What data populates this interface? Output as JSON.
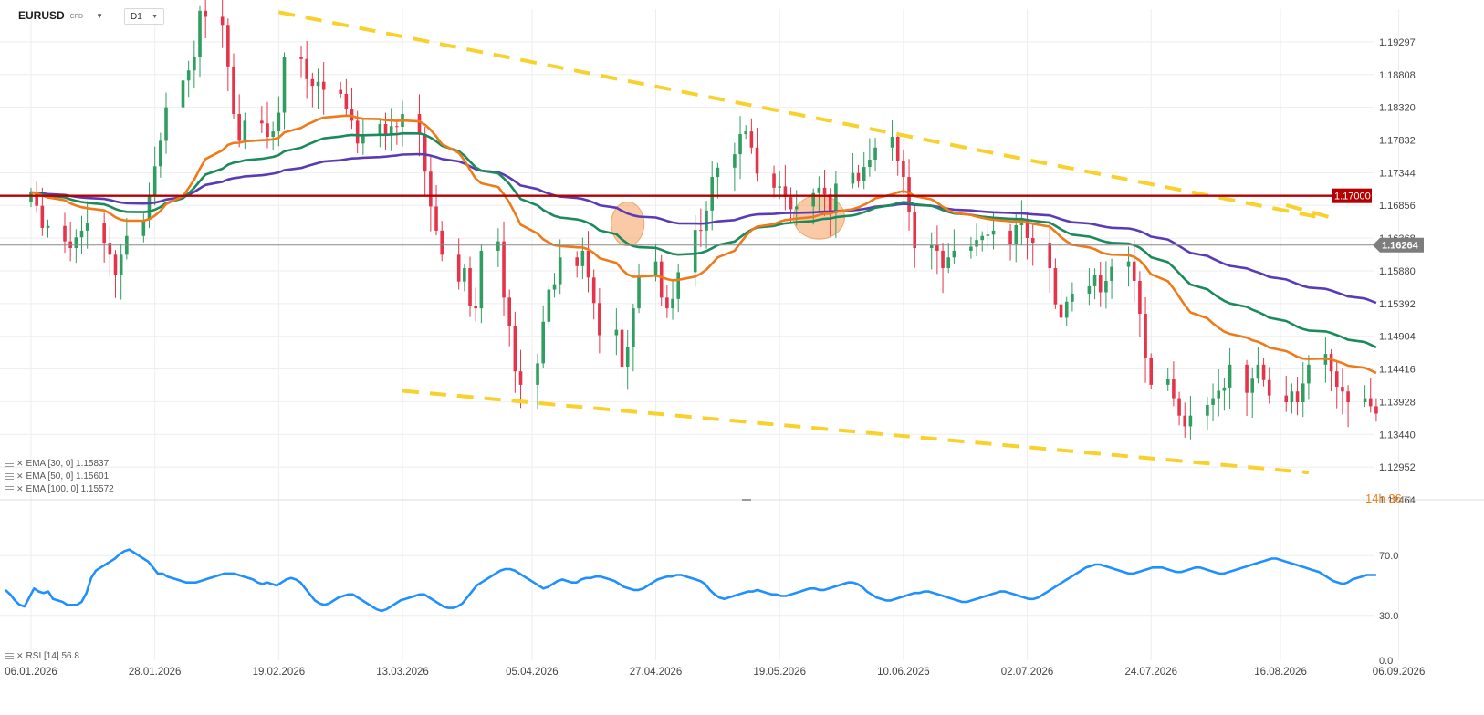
{
  "header": {
    "symbol": "EURUSD",
    "instrument_type": "CFD",
    "timeframe": "D1"
  },
  "countdown": {
    "hours": "14h",
    "minutes_value": "36",
    "minutes_unit": "m"
  },
  "legend": [
    {
      "label": "EMA [30, 0] 1.15837"
    },
    {
      "label": "EMA [50, 0] 1.15601"
    },
    {
      "label": "EMA [100, 0] 1.15572"
    }
  ],
  "rsi_legend": {
    "label": "RSI [14] 56.8"
  },
  "colors": {
    "bull": "#2f9e60",
    "bear": "#e5334a",
    "ema30": "#ee7a1a",
    "ema50": "#1c8a5c",
    "ema100": "#5b3bb5",
    "rsi": "#1e90ff",
    "trend": "#f8d12c",
    "resistance": "#b40000",
    "price": "#888888"
  },
  "chart_data": [
    {
      "type": "candlestick",
      "ylim": [
        1.12464,
        1.19785
      ],
      "y_ticks": [
        "1.19297",
        "1.18808",
        "1.18320",
        "1.17832",
        "1.17344",
        "1.16856",
        "1.16368",
        "1.15880",
        "1.15392",
        "1.14904",
        "1.14416",
        "1.13928",
        "1.13440",
        "1.12952",
        "1.12464"
      ],
      "x_ticks": [
        "06.01.2026",
        "28.01.2026",
        "19.02.2026",
        "13.03.2026",
        "05.04.2026",
        "27.04.2026",
        "19.05.2026",
        "10.06.2026",
        "02.07.2026",
        "24.07.2026",
        "16.08.2026",
        "06.09.2026"
      ],
      "x_start": "2026-01-06",
      "last_candle": "2026-09-02",
      "closes": [
        1.1705,
        1.1685,
        1.1652,
        1.1655,
        1.1632,
        1.1622,
        1.1638,
        1.1648,
        1.166,
        1.163,
        1.1612,
        1.1582,
        1.1612,
        1.164,
        1.1664,
        1.17,
        1.1744,
        1.1782,
        1.1832,
        1.1872,
        1.1887,
        1.1907,
        1.1976,
        1.1967,
        1.1955,
        1.1893,
        1.1822,
        1.1782,
        1.1812,
        1.1808,
        1.1788,
        1.1796,
        1.1824,
        1.1907,
        1.1904,
        1.1874,
        1.1864,
        1.187,
        1.1858,
        1.1852,
        1.1829,
        1.1812,
        1.1778,
        1.1792,
        1.1807,
        1.1791,
        1.1804,
        1.1803,
        1.1822,
        1.1791,
        1.1736,
        1.1684,
        1.1648,
        1.1612,
        1.1572,
        1.1592,
        1.1536,
        1.1532,
        1.1618,
        1.1632,
        1.1548,
        1.1505,
        1.1438,
        1.1418,
        1.145,
        1.1512,
        1.156,
        1.1568,
        1.1608,
        1.1595,
        1.1618,
        1.1578,
        1.154,
        1.1492,
        1.15,
        1.1445,
        1.1475,
        1.1532,
        1.1582,
        1.1602,
        1.1548,
        1.1532,
        1.1546,
        1.1586,
        1.1649,
        1.1648,
        1.1678,
        1.1728,
        1.1742,
        1.1762,
        1.1792,
        1.1796,
        1.1772,
        1.1733,
        1.1712,
        1.1714,
        1.1698,
        1.168,
        1.1684,
        1.1704,
        1.1712,
        1.1702,
        1.1674,
        1.1718,
        1.1734,
        1.1722,
        1.1743,
        1.1754,
        1.1772,
        1.1788,
        1.1752,
        1.1728,
        1.1675,
        1.1622,
        1.1626,
        1.1618,
        1.1592,
        1.1608,
        1.1618,
        1.1624,
        1.1634,
        1.164,
        1.1642,
        1.1648,
        1.1628,
        1.1656,
        1.1664,
        1.1637,
        1.163,
        1.1592,
        1.1538,
        1.1518,
        1.1542,
        1.1554,
        1.1565,
        1.1582,
        1.1556,
        1.1573,
        1.1594,
        1.1602,
        1.1573,
        1.1524,
        1.1458,
        1.1418,
        1.1426,
        1.1398,
        1.1372,
        1.1356,
        1.1372,
        1.1388,
        1.1398,
        1.1409,
        1.1414,
        1.1448,
        1.1406,
        1.1427,
        1.1448,
        1.1425,
        1.1402,
        1.1392,
        1.1408,
        1.1392,
        1.142,
        1.1448,
        1.1464,
        1.1438,
        1.1415,
        1.1408,
        1.1392,
        1.1398,
        1.1386,
        1.1375,
        1.1386,
        1.1403,
        1.1434,
        1.1514,
        1.1536,
        1.1535,
        1.1552,
        1.1562,
        1.1548,
        1.1527,
        1.155,
        1.1565,
        1.1552,
        1.1532,
        1.1545,
        1.1552,
        1.1535,
        1.1546,
        1.1582,
        1.1565,
        1.1583,
        1.1585,
        1.1666,
        1.1682,
        1.1678,
        1.1672,
        1.1663,
        1.1661,
        1.165,
        1.1628,
        1.1576,
        1.1584,
        1.1608,
        1.1576,
        1.1592,
        1.1626
      ],
      "price_labels": {
        "current": "1.16264",
        "resistance": "1.17000"
      },
      "indicators": {
        "ema30": {
          "last": 1.15837
        },
        "ema50": {
          "last": 1.15601
        },
        "ema100": {
          "last": 1.15572
        }
      },
      "trendlines": [
        {
          "name": "upper-trend",
          "from": [
            "2026-02-19",
            1.1974
          ],
          "to": [
            "2026-08-24",
            1.1666
          ]
        },
        {
          "name": "upper-trend-extension",
          "from": [
            "2026-08-17",
            1.1686
          ],
          "to": [
            "2026-08-26",
            1.1665
          ]
        },
        {
          "name": "lower-trend",
          "from": [
            "2026-03-13",
            1.1409
          ],
          "to": [
            "2026-08-21",
            1.1287
          ]
        }
      ],
      "resistance": 1.17,
      "highlight_zones": [
        {
          "date": "2026-04-22",
          "center": 1.1658
        },
        {
          "date": "2026-05-26",
          "center": 1.1668
        }
      ]
    },
    {
      "type": "line",
      "name": "RSI [14]",
      "ylim": [
        0,
        100
      ],
      "y_ticks": [
        "70.0",
        "30.0",
        "0.0"
      ],
      "x_start": "2026-01-06",
      "values": [
        47,
        44,
        40,
        37,
        36,
        42,
        48,
        46,
        45,
        46,
        41,
        40,
        39,
        37,
        37,
        37,
        39,
        45,
        55,
        60,
        62,
        64,
        66,
        68,
        71,
        73,
        74,
        72,
        70,
        68,
        66,
        62,
        58,
        58,
        56,
        55,
        54,
        53,
        52,
        52,
        52,
        53,
        54,
        55,
        56,
        57,
        58,
        58,
        58,
        57,
        56,
        55,
        54,
        52,
        51,
        52,
        51,
        50,
        52,
        54,
        55,
        54,
        52,
        48,
        44,
        40,
        38,
        37,
        38,
        40,
        42,
        43,
        44,
        44,
        42,
        40,
        38,
        36,
        34,
        33,
        34,
        36,
        38,
        40,
        41,
        42,
        43,
        44,
        44,
        42,
        40,
        38,
        36,
        35,
        35,
        36,
        38,
        42,
        46,
        50,
        52,
        54,
        56,
        58,
        60,
        61,
        61,
        60,
        58,
        56,
        54,
        52,
        50,
        48,
        49,
        51,
        53,
        54,
        53,
        52,
        52,
        54,
        55,
        55,
        56,
        56,
        55,
        54,
        53,
        51,
        49,
        48,
        47,
        47,
        48,
        50,
        52,
        54,
        55,
        56,
        56,
        57,
        57,
        56,
        55,
        54,
        53,
        51,
        47,
        44,
        42,
        41,
        42,
        43,
        44,
        45,
        46,
        46,
        47,
        46,
        45,
        44,
        44,
        43,
        43,
        44,
        45,
        46,
        47,
        48,
        48,
        47,
        47,
        48,
        49,
        50,
        51,
        52,
        52,
        51,
        49,
        46,
        44,
        42,
        41,
        40,
        40,
        41,
        42,
        43,
        44,
        45,
        45,
        46,
        46,
        45,
        44,
        43,
        42,
        41,
        40,
        39,
        39,
        40,
        41,
        42,
        43,
        44,
        45,
        46,
        46,
        45,
        44,
        43,
        42,
        41,
        41,
        42,
        44,
        46,
        48,
        50,
        52,
        54,
        56,
        58,
        60,
        62,
        63,
        64,
        64,
        63,
        62,
        61,
        60,
        59,
        58,
        58,
        59,
        60,
        61,
        62,
        62,
        62,
        61,
        60,
        59,
        59,
        60,
        61,
        62,
        62,
        61,
        60,
        59,
        58,
        58,
        59,
        60,
        61,
        62,
        63,
        64,
        65,
        66,
        67,
        68,
        68,
        67,
        66,
        65,
        64,
        63,
        62,
        61,
        60,
        59,
        57,
        55,
        53,
        52,
        51,
        52,
        54,
        55,
        56,
        57,
        57,
        57
      ],
      "last": 56.8
    }
  ]
}
